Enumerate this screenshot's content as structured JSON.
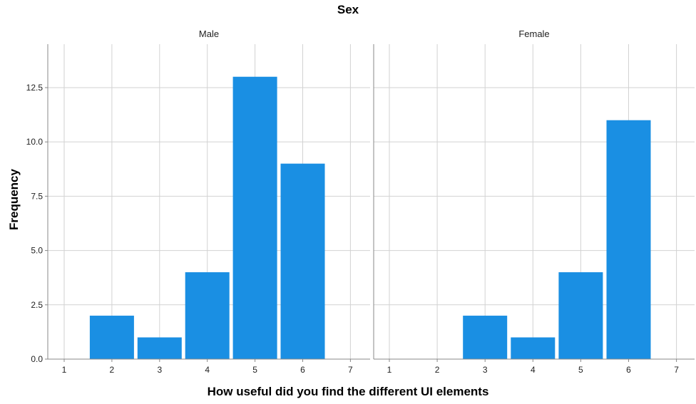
{
  "chart_data": {
    "type": "bar",
    "title": "Sex",
    "xlabel": "How useful did you find the different UI elements",
    "ylabel": "Frequency",
    "categories": [
      "1",
      "2",
      "3",
      "4",
      "5",
      "6",
      "7"
    ],
    "y_ticks": [
      "0.0",
      "2.5",
      "5.0",
      "7.5",
      "10.0",
      "12.5"
    ],
    "ylim": [
      0,
      14.5
    ],
    "grid": true,
    "bar_color": "#1a8fe3",
    "panels": [
      {
        "name": "Male",
        "values": [
          0,
          2,
          1,
          4,
          13,
          9,
          0
        ]
      },
      {
        "name": "Female",
        "values": [
          0,
          0,
          2,
          1,
          4,
          11,
          0
        ]
      }
    ]
  }
}
